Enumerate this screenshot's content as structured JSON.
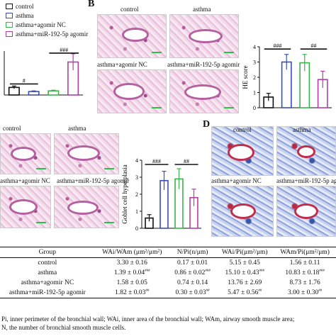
{
  "panels": {
    "b_letter": "B",
    "d_letter": "D"
  },
  "legend": [
    {
      "label": "control",
      "color": "#111111"
    },
    {
      "label": "asthma",
      "color": "#3a4fb5"
    },
    {
      "label": "asthma+agomir NC",
      "color": "#39b54a"
    },
    {
      "label": "asthma+miR-192-5p agomir",
      "color": "#b040a8"
    }
  ],
  "micro_labels": {
    "b_control": "control",
    "b_asthma": "asthma",
    "b_agomir_nc": "asthma+agomir NC",
    "b_agomir": "asthma+miR-192-5p agomir",
    "c_control": "control",
    "c_asthma": "asthma",
    "c_agomir_nc": "asthma+agomir NC",
    "c_agomir": "asthma+miR-192-5p agomir",
    "d_control": "control",
    "d_asthma": "asthma",
    "d_agomir_nc": "asthma+agomir NC",
    "d_agomir": "asthma+miR-192-5p agomir"
  },
  "chart_data": [
    {
      "type": "bar",
      "categories": [
        "control",
        "asthma",
        "asthma+agomir NC",
        "asthma+miR-192-5p agomir"
      ],
      "values": [
        0.55,
        0.25,
        0.3,
        2.4
      ],
      "errors": [
        0.1,
        0.05,
        0.05,
        0.6
      ],
      "colors": [
        "#111111",
        "#3a4fb5",
        "#39b54a",
        "#b040a8"
      ],
      "significance": [
        "#",
        "###"
      ],
      "ylim": [
        0,
        3.2
      ]
    },
    {
      "type": "bar",
      "categories": [
        "control",
        "asthma",
        "asthma+agomir NC",
        "asthma+miR-192-5p agomir"
      ],
      "values": [
        0.7,
        3.0,
        2.95,
        1.85
      ],
      "errors": [
        0.25,
        0.5,
        0.55,
        0.55
      ],
      "colors": [
        "#111111",
        "#3a4fb5",
        "#39b54a",
        "#b040a8"
      ],
      "significance": [
        "###",
        "##"
      ],
      "ylabel": "HE score",
      "ylim": [
        0,
        4
      ],
      "yticks": [
        0,
        1,
        2,
        3,
        4
      ]
    },
    {
      "type": "bar",
      "categories": [
        "control",
        "asthma",
        "asthma+agomir NC",
        "asthma+miR-192-5p agomir"
      ],
      "values": [
        0.6,
        2.8,
        2.9,
        1.8
      ],
      "errors": [
        0.2,
        0.55,
        0.6,
        0.5
      ],
      "colors": [
        "#111111",
        "#3a4fb5",
        "#39b54a",
        "#b040a8"
      ],
      "significance": [
        "###",
        "##"
      ],
      "ylabel": "Goblet cell hyperplasia",
      "ylim": [
        0,
        4
      ],
      "yticks": [
        0,
        1,
        2,
        3,
        4
      ]
    },
    {
      "type": "table",
      "columns": [
        "Group",
        "WAi/WAm (μm²/μm²)",
        "N/Pi(n/μm)",
        "WAi/Pi(μm²/μm)",
        "WAm/Pi(μm²/μm)"
      ],
      "rows": [
        [
          "control",
          "3.30 ± 0.16",
          "0.17 ± 0.01",
          "5.15 ± 0.45",
          "1.56 ± 0.11"
        ],
        [
          "asthma",
          "1.39 ± 0.04",
          "0.86 ± 0.02",
          "15.10 ± 0.43",
          "10.83 ± 0.18"
        ],
        [
          "asthma+agomir NC",
          "1.58 ± 0.05",
          "0.74 ± 0.14",
          "13.76 ± 2.69",
          "8.73 ± 1.76"
        ],
        [
          "asthma+miR-192-5p agomir",
          "1.82 ± 0.03",
          "0.30 ± 0.03",
          "5.47 ± 0.56",
          "3.00 ± 0.30"
        ]
      ],
      "superscripts": [
        [
          "",
          "",
          "",
          ""
        ],
        [
          "###",
          "###",
          "###",
          "###"
        ],
        [
          "",
          "",
          "",
          ""
        ],
        [
          "##",
          "##",
          "##",
          "##"
        ]
      ]
    }
  ],
  "footnote": {
    "line1": "Pi, inner perimeter of the bronchial wall; WAi, inner area of the bronchial wall; WAm, airway smooth muscle area;",
    "line2": "N, the number of bronchial smooth muscle cells."
  }
}
